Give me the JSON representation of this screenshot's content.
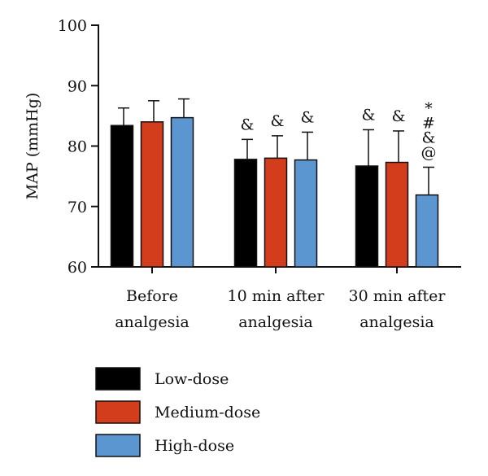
{
  "chart_data": {
    "type": "bar",
    "title": "",
    "xlabel": "",
    "ylabel": "MAP (mmHg)",
    "ylim": [
      60,
      100
    ],
    "yticks": [
      60,
      70,
      80,
      90,
      100
    ],
    "grid": false,
    "legend_position": "bottom",
    "categories": [
      [
        "Before",
        "analgesia"
      ],
      [
        "10 min after",
        "analgesia"
      ],
      [
        "30 min after",
        "analgesia"
      ]
    ],
    "series": [
      {
        "name": "Low-dose",
        "color": "#000000",
        "values": [
          83.4,
          77.8,
          76.7
        ],
        "errors": [
          2.9,
          3.3,
          6.0
        ],
        "annotations": [
          [],
          [
            "&"
          ],
          [
            "&"
          ]
        ]
      },
      {
        "name": "Medium-dose",
        "color": "#d43d1c",
        "values": [
          84.0,
          78.0,
          77.3
        ],
        "errors": [
          3.5,
          3.7,
          5.2
        ],
        "annotations": [
          [],
          [
            "&"
          ],
          [
            "&"
          ]
        ]
      },
      {
        "name": "High-dose",
        "color": "#5b96d1",
        "values": [
          84.7,
          77.7,
          71.9
        ],
        "errors": [
          3.1,
          4.6,
          4.6
        ],
        "annotations": [
          [],
          [
            "&"
          ],
          [
            "*",
            "#",
            "&",
            "@"
          ]
        ]
      }
    ]
  }
}
